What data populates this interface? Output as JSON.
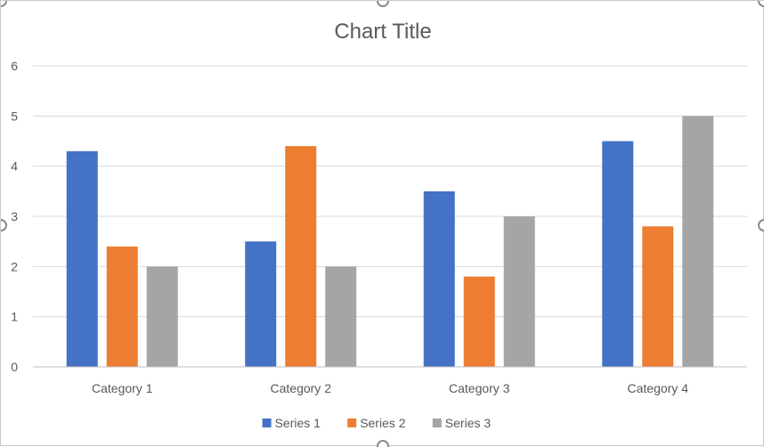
{
  "chart_data": {
    "type": "bar",
    "title": "Chart Title",
    "categories": [
      "Category 1",
      "Category 2",
      "Category 3",
      "Category 4"
    ],
    "series": [
      {
        "name": "Series 1",
        "color": "#4472C4",
        "values": [
          4.3,
          2.5,
          3.5,
          4.5
        ]
      },
      {
        "name": "Series 2",
        "color": "#ED7D31",
        "values": [
          2.4,
          4.4,
          1.8,
          2.8
        ]
      },
      {
        "name": "Series 3",
        "color": "#A5A5A5",
        "values": [
          2,
          2,
          3,
          5
        ]
      }
    ],
    "ylim": [
      0,
      6
    ],
    "yticks": [
      "0",
      "1",
      "2",
      "3",
      "4",
      "5",
      "6"
    ],
    "grid": true,
    "legend_position": "bottom"
  }
}
